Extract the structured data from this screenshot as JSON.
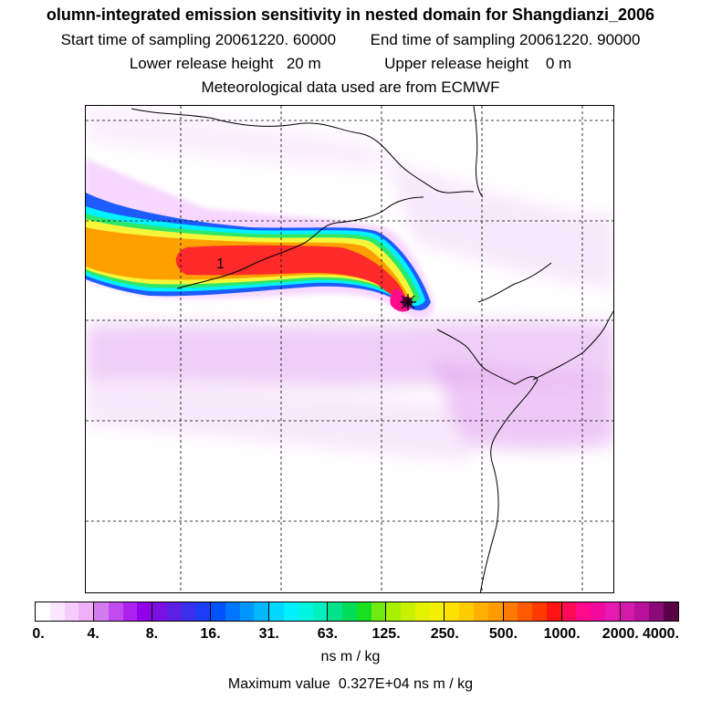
{
  "header": {
    "title": "olumn-integrated emission sensitivity in nested domain for Shangdianzi_2006",
    "start_label": "Start time of sampling",
    "start_value": "20061220. 60000",
    "end_label": "End time of sampling",
    "end_value": "20061220. 90000",
    "lower_label": "Lower release height",
    "lower_value": "20 m",
    "upper_label": "Upper release height",
    "upper_value": "0 m",
    "met_text": "Meteorological data used are from ECMWF"
  },
  "map": {
    "receptor_marker": "1",
    "plume_colors": {
      "outer": "#f7d6ff",
      "blue": "#1e5cff",
      "cyan": "#00f0ff",
      "green": "#2ee86a",
      "yellow": "#f5f53a",
      "orange": "#ffa000",
      "red": "#ff2a2a",
      "magenta": "#ff0c8c",
      "source": "#6a0050"
    },
    "background_band_color": "#e2a5f0"
  },
  "colorbar": {
    "labels": [
      "0.",
      "4.",
      "8.",
      "16.",
      "31.",
      "63.",
      "125.",
      "250.",
      "500.",
      "1000.",
      "2000.",
      "4000."
    ],
    "colors": [
      "#ffffff",
      "#fbe6ff",
      "#f5ccfb",
      "#efb0f7",
      "#d37cf0",
      "#c34aee",
      "#ad21ee",
      "#9000e6",
      "#7a10e0",
      "#5c1fe6",
      "#3b2fee",
      "#1b3cf5",
      "#0052ff",
      "#0075ff",
      "#0096ff",
      "#00b8ff",
      "#00d8ff",
      "#00f0ff",
      "#00f5e0",
      "#00f0c0",
      "#00e38a",
      "#00dd5a",
      "#16e020",
      "#70ea10",
      "#a8f000",
      "#c8f000",
      "#e2f200",
      "#f5f000",
      "#ffe100",
      "#ffcc00",
      "#ffb000",
      "#ff9a00",
      "#ff7a00",
      "#ff5a00",
      "#ff3a00",
      "#ff1414",
      "#ff0a54",
      "#ff0a8c",
      "#f00a9e",
      "#e61ab2",
      "#d41aa8",
      "#b8109a",
      "#8a0a7a",
      "#5a0046"
    ],
    "unit": "ns m / kg"
  },
  "footer": {
    "max_label": "Maximum value",
    "max_value": "0.327E+04",
    "max_unit": "ns m / kg"
  }
}
